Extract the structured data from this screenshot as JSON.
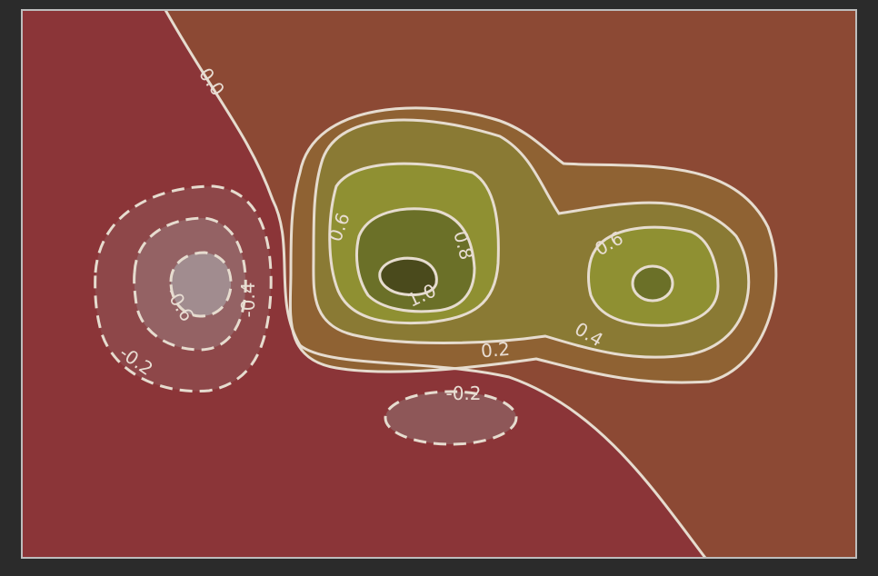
{
  "chart_data": {
    "type": "contour",
    "title": "",
    "xlabel": "",
    "ylabel": "",
    "ticks_visible": false,
    "grid": false,
    "legend": "none",
    "colors": {
      "background": "#2b2b2b",
      "frame": "#bdbdbd",
      "region_negative": "#8b3538",
      "region_positive": "#8c4934",
      "band_0_2": "#8f6233",
      "band_0_4": "#8a7a34",
      "band_0_6": "#8f9032",
      "band_0_8": "#6b7028",
      "band_1_0": "#4a4a1c",
      "neg_band_0_2": "#8e4749",
      "neg_band_0_4": "#946264",
      "neg_band_0_6": "#a18c8f",
      "contour_line": "#e6dccf"
    },
    "contour_levels": [
      -0.6,
      -0.4,
      -0.2,
      0.0,
      0.2,
      0.4,
      0.6,
      0.8,
      1.0
    ],
    "negative_levels_dashed": true,
    "level_labels": [
      {
        "text": "0.0",
        "level": 0.0
      },
      {
        "text": "0.2",
        "level": 0.2
      },
      {
        "text": "0.4",
        "level": 0.4
      },
      {
        "text": "0.6",
        "level": 0.6
      },
      {
        "text": "0.6",
        "level": 0.6
      },
      {
        "text": "0.8",
        "level": 0.8
      },
      {
        "text": "1.0",
        "level": 1.0
      },
      {
        "text": "-0.2",
        "level": -0.2
      },
      {
        "text": "-0.2",
        "level": -0.2
      },
      {
        "text": "-0.4",
        "level": -0.4
      },
      {
        "text": "-0.6",
        "level": -0.6
      }
    ]
  }
}
